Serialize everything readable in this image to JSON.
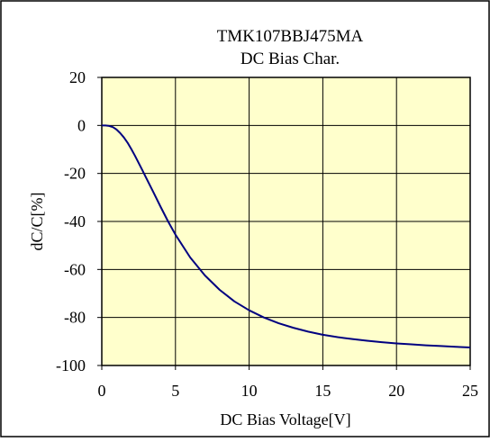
{
  "chart_data": {
    "type": "line",
    "title": "TMK107BBJ475MA",
    "subtitle": "DC Bias Char.",
    "xlabel": "DC Bias Voltage[V]",
    "ylabel": "dC/C[%]",
    "xlim": [
      0,
      25
    ],
    "ylim": [
      -100,
      20
    ],
    "xticks": [
      0,
      5,
      10,
      15,
      20,
      25
    ],
    "yticks": [
      20,
      0,
      -20,
      -40,
      -60,
      -80,
      -100
    ],
    "grid": true,
    "series": [
      {
        "x": [
          0,
          0.25,
          0.5,
          0.75,
          1,
          1.25,
          1.5,
          1.75,
          2,
          2.25,
          2.5,
          2.75,
          3,
          3.5,
          4,
          4.5,
          5,
          6,
          7,
          8,
          9,
          10,
          11,
          12,
          13,
          14,
          15,
          16,
          17,
          18,
          19,
          20,
          21,
          22,
          23,
          24,
          25
        ],
        "y": [
          0,
          0,
          -0.2,
          -0.7,
          -1.7,
          -3.2,
          -5,
          -7.2,
          -9.8,
          -12.6,
          -15.6,
          -18.6,
          -21.7,
          -27.8,
          -34,
          -40,
          -45.5,
          -55,
          -62.5,
          -68.5,
          -73.3,
          -77,
          -80,
          -82.4,
          -84.3,
          -85.9,
          -87.2,
          -88.2,
          -89,
          -89.7,
          -90.3,
          -90.8,
          -91.2,
          -91.6,
          -91.9,
          -92.2,
          -92.5
        ]
      }
    ],
    "colors": {
      "plot_background": "#ffffcc",
      "line": "#000080",
      "grid": "#000000"
    }
  }
}
